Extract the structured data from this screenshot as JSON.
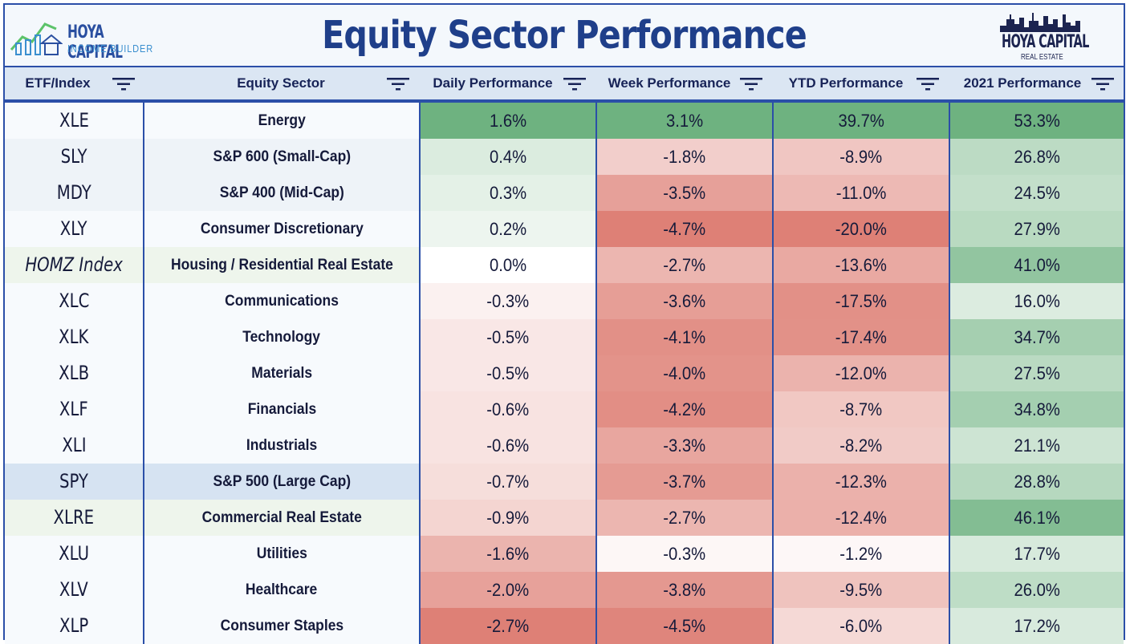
{
  "header": {
    "title": "Equity Sector Performance",
    "logo_left_line1": "HOYA CAPITAL",
    "logo_left_line2": "INCOME BUILDER",
    "logo_right_line1": "HOYA CAPITAL",
    "logo_right_line2": "REAL ESTATE"
  },
  "columns": {
    "etf": "ETF/Index",
    "sector": "Equity Sector",
    "daily": "Daily Performance",
    "week": "Week Performance",
    "ytd": "YTD Performance",
    "y2021": "2021 Performance"
  },
  "icons": {
    "filter": "filter-icon",
    "logo": "chart-bars-house-icon",
    "skyline": "city-skyline-icon"
  },
  "colors": {
    "border": "#2b4fa8",
    "title": "#1f3f8a",
    "header_bg": "#dbe6f3"
  },
  "rows": [
    {
      "etf": "XLE",
      "sector": "Energy",
      "daily": "1.6%",
      "week": "3.1%",
      "ytd": "39.7%",
      "y2021": "53.3%"
    },
    {
      "etf": "SLY",
      "sector": "S&P 600 (Small-Cap)",
      "daily": "0.4%",
      "week": "-1.8%",
      "ytd": "-8.9%",
      "y2021": "26.8%"
    },
    {
      "etf": "MDY",
      "sector": "S&P 400 (Mid-Cap)",
      "daily": "0.3%",
      "week": "-3.5%",
      "ytd": "-11.0%",
      "y2021": "24.5%"
    },
    {
      "etf": "XLY",
      "sector": "Consumer Discretionary",
      "daily": "0.2%",
      "week": "-4.7%",
      "ytd": "-20.0%",
      "y2021": "27.9%"
    },
    {
      "etf": "HOMZ Index",
      "sector": "Housing / Residential Real Estate",
      "daily": "0.0%",
      "week": "-2.7%",
      "ytd": "-13.6%",
      "y2021": "41.0%"
    },
    {
      "etf": "XLC",
      "sector": "Communications",
      "daily": "-0.3%",
      "week": "-3.6%",
      "ytd": "-17.5%",
      "y2021": "16.0%"
    },
    {
      "etf": "XLK",
      "sector": "Technology",
      "daily": "-0.5%",
      "week": "-4.1%",
      "ytd": "-17.4%",
      "y2021": "34.7%"
    },
    {
      "etf": "XLB",
      "sector": "Materials",
      "daily": "-0.5%",
      "week": "-4.0%",
      "ytd": "-12.0%",
      "y2021": "27.5%"
    },
    {
      "etf": "XLF",
      "sector": "Financials",
      "daily": "-0.6%",
      "week": "-4.2%",
      "ytd": "-8.7%",
      "y2021": "34.8%"
    },
    {
      "etf": "XLI",
      "sector": "Industrials",
      "daily": "-0.6%",
      "week": "-3.3%",
      "ytd": "-8.2%",
      "y2021": "21.1%"
    },
    {
      "etf": "SPY",
      "sector": "S&P 500 (Large Cap)",
      "daily": "-0.7%",
      "week": "-3.7%",
      "ytd": "-12.3%",
      "y2021": "28.8%"
    },
    {
      "etf": "XLRE",
      "sector": "Commercial Real Estate",
      "daily": "-0.9%",
      "week": "-2.7%",
      "ytd": "-12.4%",
      "y2021": "46.1%"
    },
    {
      "etf": "XLU",
      "sector": "Utilities",
      "daily": "-1.6%",
      "week": "-0.3%",
      "ytd": "-1.2%",
      "y2021": "17.7%"
    },
    {
      "etf": "XLV",
      "sector": "Healthcare",
      "daily": "-2.0%",
      "week": "-3.8%",
      "ytd": "-9.5%",
      "y2021": "26.0%"
    },
    {
      "etf": "XLP",
      "sector": "Consumer Staples",
      "daily": "-2.7%",
      "week": "-4.5%",
      "ytd": "-6.0%",
      "y2021": "17.2%"
    }
  ]
}
